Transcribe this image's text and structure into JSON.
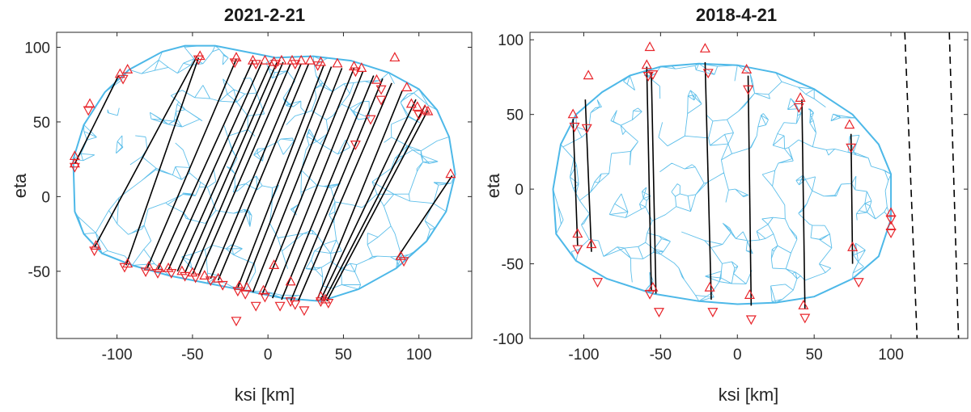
{
  "chart_data": [
    {
      "type": "scatter",
      "title": "2021-2-21",
      "xlabel": "ksi [km]",
      "ylabel": "eta",
      "xlim": [
        -140,
        135
      ],
      "ylim": [
        -95,
        110
      ],
      "xticks": [
        -100,
        -50,
        0,
        50,
        100
      ],
      "yticks": [
        -50,
        0,
        50,
        100
      ],
      "xtick_labels": [
        "-100",
        "-50",
        "0",
        "50",
        "100"
      ],
      "ytick_labels": [
        "-50",
        "0",
        "50",
        "100"
      ],
      "grid": false,
      "colors": {
        "shape_mesh": "#4db8e8",
        "chords": "#000000",
        "markers": "#e8242a"
      },
      "shape_outline": [
        [
          -128,
          -10
        ],
        [
          -129,
          25
        ],
        [
          -122,
          48
        ],
        [
          -108,
          70
        ],
        [
          -92,
          85
        ],
        [
          -70,
          97
        ],
        [
          -55,
          101
        ],
        [
          -35,
          101
        ],
        [
          -15,
          97
        ],
        [
          5,
          93
        ],
        [
          30,
          94
        ],
        [
          55,
          91
        ],
        [
          80,
          83
        ],
        [
          100,
          72
        ],
        [
          112,
          58
        ],
        [
          120,
          40
        ],
        [
          124,
          15
        ],
        [
          118,
          -10
        ],
        [
          105,
          -30
        ],
        [
          85,
          -48
        ],
        [
          60,
          -62
        ],
        [
          35,
          -70
        ],
        [
          10,
          -68
        ],
        [
          -15,
          -63
        ],
        [
          -40,
          -58
        ],
        [
          -65,
          -53
        ],
        [
          -90,
          -46
        ],
        [
          -110,
          -38
        ],
        [
          -122,
          -25
        ]
      ],
      "chords": [
        [
          -128,
          22,
          -99,
          81
        ],
        [
          -115,
          -34,
          -47,
          94
        ],
        [
          -94,
          -46,
          -46,
          93
        ],
        [
          -80,
          -48,
          -21,
          92
        ],
        [
          -73,
          -49,
          -10,
          91
        ],
        [
          -66,
          -49,
          -4,
          90
        ],
        [
          -60,
          -50,
          2,
          90
        ],
        [
          -55,
          -51,
          6,
          90
        ],
        [
          -50,
          -52,
          10,
          90
        ],
        [
          -46,
          -53,
          15,
          89
        ],
        [
          -38,
          -55,
          22,
          89
        ],
        [
          -33,
          -56,
          27,
          89
        ],
        [
          -20,
          -61,
          37,
          88
        ],
        [
          -16,
          -62,
          42,
          87
        ],
        [
          -10,
          -64,
          49,
          86
        ],
        [
          -4,
          -66,
          57,
          86
        ],
        [
          3,
          -68,
          63,
          84
        ],
        [
          9,
          -69,
          70,
          81
        ],
        [
          15,
          -70,
          76,
          79
        ],
        [
          20,
          -70,
          82,
          76
        ],
        [
          33,
          -68,
          89,
          71
        ],
        [
          35,
          -69,
          98,
          65
        ],
        [
          37,
          -70,
          104,
          61
        ],
        [
          39,
          -70,
          106,
          58
        ],
        [
          85,
          -42,
          122,
          14
        ]
      ],
      "markers_up": [
        [
          -128,
          27
        ],
        [
          -118,
          62
        ],
        [
          -98,
          82
        ],
        [
          -93,
          85
        ],
        [
          -45,
          94
        ],
        [
          -21,
          93
        ],
        [
          -10,
          91
        ],
        [
          -2,
          91
        ],
        [
          4,
          90
        ],
        [
          9,
          91
        ],
        [
          16,
          91
        ],
        [
          22,
          91
        ],
        [
          28,
          91
        ],
        [
          35,
          90
        ],
        [
          46,
          89
        ],
        [
          57,
          87
        ],
        [
          62,
          86
        ],
        [
          72,
          78
        ],
        [
          84,
          93
        ],
        [
          92,
          73
        ],
        [
          95,
          62
        ],
        [
          99,
          60
        ],
        [
          104,
          58
        ],
        [
          106,
          57
        ],
        [
          121,
          15
        ],
        [
          -128,
          22
        ],
        [
          -114,
          -33
        ],
        [
          -93,
          -45
        ],
        [
          -79,
          -47
        ],
        [
          -72,
          -48
        ],
        [
          -66,
          -48
        ],
        [
          -57,
          -50
        ],
        [
          -50,
          -51
        ],
        [
          -42,
          -53
        ],
        [
          -33,
          -55
        ],
        [
          -19,
          -60
        ],
        [
          -14,
          -61
        ],
        [
          -3,
          -63
        ],
        [
          4,
          -46
        ],
        [
          15,
          -57
        ],
        [
          35,
          -67
        ],
        [
          38,
          -69
        ],
        [
          88,
          -40
        ]
      ],
      "markers_down": [
        [
          -128,
          20
        ],
        [
          -119,
          58
        ],
        [
          -96,
          79
        ],
        [
          -46,
          92
        ],
        [
          -22,
          90
        ],
        [
          -8,
          89
        ],
        [
          5,
          89
        ],
        [
          18,
          89
        ],
        [
          33,
          88
        ],
        [
          58,
          84
        ],
        [
          75,
          72
        ],
        [
          58,
          35
        ],
        [
          68,
          52
        ],
        [
          75,
          65
        ],
        [
          100,
          55
        ],
        [
          90,
          -43
        ],
        [
          -115,
          -36
        ],
        [
          -95,
          -47
        ],
        [
          -81,
          -50
        ],
        [
          -73,
          -51
        ],
        [
          -64,
          -51
        ],
        [
          -55,
          -53
        ],
        [
          -48,
          -54
        ],
        [
          -38,
          -56
        ],
        [
          -30,
          -59
        ],
        [
          -20,
          -63
        ],
        [
          -15,
          -65
        ],
        [
          -8,
          -73
        ],
        [
          -2,
          -67
        ],
        [
          8,
          -73
        ],
        [
          15,
          -70
        ],
        [
          18,
          -72
        ],
        [
          24,
          -76
        ],
        [
          35,
          -70
        ],
        [
          40,
          -71
        ],
        [
          -21,
          -83
        ]
      ]
    },
    {
      "type": "scatter",
      "title": "2018-4-21",
      "xlabel": "ksi [km]",
      "ylabel": "eta",
      "xlim": [
        -135,
        150
      ],
      "ylim": [
        -100,
        105
      ],
      "xticks": [
        -100,
        -50,
        0,
        50,
        100
      ],
      "yticks": [
        -100,
        -50,
        0,
        50,
        100
      ],
      "xtick_labels": [
        "-100",
        "-50",
        "0",
        "50",
        "100"
      ],
      "ytick_labels": [
        "-100",
        "-50",
        "0",
        "50",
        "100"
      ],
      "grid": false,
      "colors": {
        "shape_mesh": "#4db8e8",
        "chords": "#000000",
        "markers": "#e8242a"
      },
      "shape_outline": [
        [
          -118,
          -30
        ],
        [
          -120,
          0
        ],
        [
          -115,
          30
        ],
        [
          -105,
          50
        ],
        [
          -88,
          65
        ],
        [
          -70,
          76
        ],
        [
          -50,
          82
        ],
        [
          -25,
          84
        ],
        [
          0,
          83
        ],
        [
          25,
          78
        ],
        [
          50,
          67
        ],
        [
          75,
          50
        ],
        [
          92,
          30
        ],
        [
          100,
          10
        ],
        [
          100,
          -20
        ],
        [
          92,
          -45
        ],
        [
          75,
          -60
        ],
        [
          50,
          -72
        ],
        [
          25,
          -76
        ],
        [
          0,
          -77
        ],
        [
          -25,
          -75
        ],
        [
          -55,
          -70
        ],
        [
          -85,
          -60
        ],
        [
          -105,
          -48
        ]
      ],
      "chords": [
        [
          -107,
          47,
          -104,
          -38
        ],
        [
          -99,
          60,
          -95,
          -42
        ],
        [
          -59,
          82,
          -56,
          -68
        ],
        [
          -56,
          78,
          -53,
          -70
        ],
        [
          -21,
          85,
          -17,
          -74
        ],
        [
          7,
          76,
          9,
          -78
        ],
        [
          42,
          60,
          44,
          -80
        ],
        [
          74,
          37,
          75,
          -50
        ]
      ],
      "dashed_lines": [
        [
          109,
          105,
          117,
          -100
        ],
        [
          138,
          105,
          144,
          -100
        ]
      ],
      "markers_up": [
        [
          -107,
          50
        ],
        [
          -97,
          76
        ],
        [
          -59,
          83
        ],
        [
          -57,
          95
        ],
        [
          -21,
          94
        ],
        [
          6,
          80
        ],
        [
          41,
          61
        ],
        [
          73,
          43
        ],
        [
          100,
          -16
        ],
        [
          100,
          -25
        ],
        [
          -104,
          -30
        ],
        [
          -95,
          -37
        ],
        [
          -55,
          -66
        ],
        [
          -18,
          -66
        ],
        [
          8,
          -71
        ],
        [
          43,
          -78
        ],
        [
          75,
          -39
        ]
      ],
      "markers_down": [
        [
          -106,
          42
        ],
        [
          -98,
          41
        ],
        [
          -58,
          76
        ],
        [
          -55,
          77
        ],
        [
          -19,
          78
        ],
        [
          7,
          67
        ],
        [
          40,
          55
        ],
        [
          74,
          28
        ],
        [
          100,
          -20
        ],
        [
          100,
          -29
        ],
        [
          -104,
          -40
        ],
        [
          -91,
          -62
        ],
        [
          -57,
          -70
        ],
        [
          -51,
          -82
        ],
        [
          -16,
          -82
        ],
        [
          9,
          -87
        ],
        [
          44,
          -86
        ],
        [
          79,
          -62
        ]
      ]
    }
  ]
}
